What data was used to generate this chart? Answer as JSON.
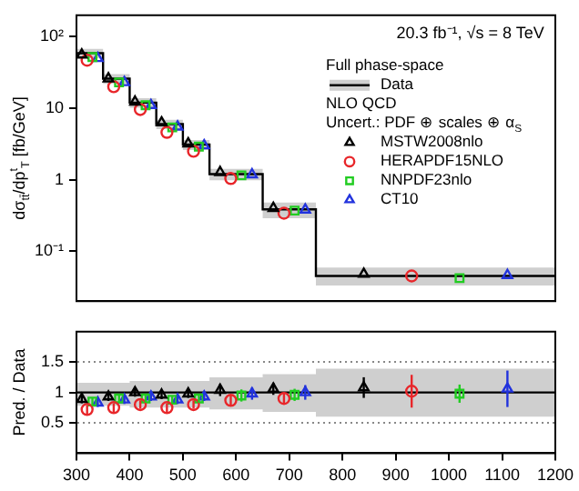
{
  "chart_data": [
    {
      "type": "scatter",
      "ylabel": "dσ$_{tt̄}$/dp$^{t}$$_{T}$ [fb/GeV]",
      "legend_title": "Full phase-space",
      "annotations": [
        "20.3 fb⁻¹, √s = 8 TeV",
        "NLO QCD",
        "Uncert.: PDF ⊕ scales ⊕ α$_{S}$"
      ],
      "log": "y",
      "xlim": [
        300,
        1200
      ],
      "xticks": [
        300,
        400,
        500,
        600,
        700,
        800,
        900,
        1000,
        1100,
        1200
      ],
      "ylim": [
        0.02,
        200
      ],
      "yticks": [
        {
          "value": 0.1,
          "label": "10⁻¹"
        },
        1,
        10,
        {
          "value": 100,
          "label": "10²"
        }
      ],
      "tick_labels": "y",
      "legend": "top right",
      "series": [
        {
          "name": "Data",
          "type": "step",
          "color": "#000000",
          "x": [
            300,
            350,
            400,
            450,
            500,
            550,
            650,
            750,
            1200
          ],
          "values": [
            59,
            26,
            12,
            6.0,
            3.1,
            1.2,
            0.385,
            0.045,
            0.045
          ],
          "lower": [
            50,
            22,
            10.2,
            5.1,
            2.6,
            0.98,
            0.29,
            0.033,
            0.033
          ],
          "upper": [
            68,
            30,
            13.8,
            6.9,
            3.6,
            1.42,
            0.48,
            0.059,
            0.059
          ]
        },
        {
          "name": "MSTW2008nlo",
          "marker": "triangle",
          "color": "#000000",
          "x": [
            310,
            360,
            410,
            460,
            510,
            570,
            670,
            840
          ],
          "values": [
            56,
            26,
            12.3,
            6.3,
            3.2,
            1.27,
            0.4,
            0.048
          ]
        },
        {
          "name": "HERAPDF15NLO",
          "marker": "circle",
          "color": "#e8262a",
          "x": [
            320,
            370,
            420,
            470,
            520,
            590,
            690,
            930
          ],
          "values": [
            47,
            20,
            9.6,
            4.6,
            2.5,
            1.04,
            0.34,
            0.045
          ]
        },
        {
          "name": "NNPDF23nlo",
          "marker": "square",
          "color": "#22cc22",
          "x": [
            330,
            380,
            430,
            480,
            530,
            610,
            710,
            1020
          ],
          "values": [
            52,
            23,
            11,
            5.4,
            2.9,
            1.15,
            0.37,
            0.042
          ]
        },
        {
          "name": "CT10",
          "marker": "triangle",
          "color": "#2233dd",
          "x": [
            340,
            390,
            440,
            490,
            540,
            630,
            730,
            1110
          ],
          "values": [
            50,
            23,
            11,
            5.5,
            3.0,
            1.18,
            0.38,
            0.046
          ]
        }
      ]
    },
    {
      "type": "scatter",
      "ylabel": "Pred. / Data",
      "xlim": [
        300,
        1200
      ],
      "xticks": [
        300,
        400,
        500,
        600,
        700,
        800,
        900,
        1000,
        1100,
        1200
      ],
      "ylim": [
        0,
        2
      ],
      "yticks": [
        0.5,
        1,
        1.5
      ],
      "grid": "y",
      "series": [
        {
          "type": "step",
          "color": "#000000",
          "x": [
            300,
            350,
            400,
            450,
            500,
            550,
            650,
            750,
            1200
          ],
          "values": [
            1,
            1,
            1,
            1,
            1,
            1,
            1,
            1,
            1
          ],
          "lower": [
            0.78,
            0.78,
            0.75,
            0.75,
            0.75,
            0.72,
            0.68,
            0.6,
            0.6
          ],
          "upper": [
            1.16,
            1.16,
            1.19,
            1.19,
            1.19,
            1.25,
            1.3,
            1.39,
            1.39
          ]
        },
        {
          "marker": "triangle",
          "color": "#000000",
          "x": [
            310,
            360,
            410,
            460,
            510,
            570,
            670,
            840
          ],
          "values": [
            0.89,
            0.93,
            1.0,
            0.96,
            0.98,
            1.04,
            1.06,
            1.08
          ],
          "errors": [
            0.07,
            0.07,
            0.07,
            0.07,
            0.07,
            0.1,
            0.1,
            0.17
          ]
        },
        {
          "marker": "circle",
          "color": "#e8262a",
          "x": [
            320,
            370,
            420,
            470,
            520,
            590,
            690,
            930
          ],
          "values": [
            0.72,
            0.75,
            0.8,
            0.75,
            0.8,
            0.87,
            0.9,
            1.02
          ],
          "errors": [
            0.07,
            0.07,
            0.07,
            0.07,
            0.07,
            0.08,
            0.1,
            0.27
          ]
        },
        {
          "marker": "square",
          "color": "#22cc22",
          "x": [
            330,
            380,
            430,
            480,
            530,
            610,
            710,
            1020
          ],
          "values": [
            0.85,
            0.9,
            0.9,
            0.88,
            0.9,
            0.95,
            0.96,
            0.98
          ],
          "errors": [
            0.07,
            0.07,
            0.07,
            0.07,
            0.07,
            0.1,
            0.1,
            0.15
          ]
        },
        {
          "marker": "triangle",
          "color": "#2233dd",
          "x": [
            340,
            390,
            440,
            490,
            540,
            630,
            730,
            1110
          ],
          "values": [
            0.83,
            0.88,
            0.93,
            0.88,
            0.93,
            0.98,
            1.0,
            1.06
          ],
          "errors": [
            0.07,
            0.07,
            0.07,
            0.07,
            0.07,
            0.1,
            0.12,
            0.3
          ]
        }
      ]
    }
  ]
}
